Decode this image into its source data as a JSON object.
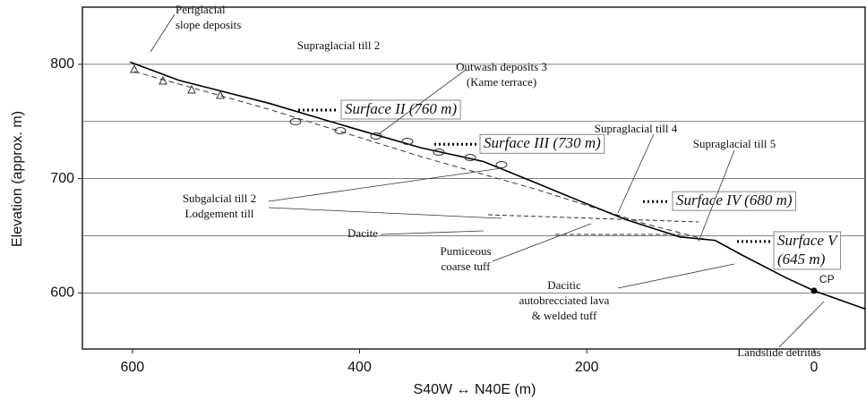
{
  "chart_data": {
    "type": "line",
    "xlabel": "S40W ↔ N40E (m)",
    "ylabel": "Elevation (approx. m)",
    "xlim": [
      644,
      -45
    ],
    "ylim": [
      551,
      850
    ],
    "xticks": [
      600,
      400,
      200,
      0
    ],
    "yticks": [
      600,
      700,
      800
    ],
    "ygrid": [
      600,
      650,
      700,
      750,
      800
    ],
    "series": [
      {
        "color": "#000000",
        "x": [
          602,
          559,
          480,
          402,
          346,
          291,
          244,
          205,
          165,
          118,
          87,
          63,
          24,
          0,
          -45
        ],
        "values": [
          802,
          786,
          766,
          743,
          727,
          715,
          696,
          680,
          664,
          649,
          646,
          633,
          613,
          602,
          586
        ]
      }
    ],
    "points": [
      {
        "label": "CP",
        "x": 0,
        "y": 602
      }
    ],
    "surfaces": [
      {
        "label": [
          "Surface II (760 m)"
        ],
        "elevation": 760
      },
      {
        "label": [
          "Surface III (730 m)"
        ],
        "elevation": 730
      },
      {
        "label": [
          "Surface IV (680 m)"
        ],
        "elevation": 680
      },
      {
        "label": [
          "Surface V",
          "(645 m)"
        ],
        "elevation": 645
      }
    ],
    "annotations": [
      [
        "Periglacial",
        "slope deposits"
      ],
      [
        "Supraglacial till 2"
      ],
      [
        "Outwash deposits 3",
        "(Kame terrace)"
      ],
      [
        "Supraglacial till 4"
      ],
      [
        "Supraglacial till 5"
      ],
      [
        "Subgalcial till 2",
        "Lodgement till"
      ],
      [
        "Dacite"
      ],
      [
        "Pumiceous",
        "coarse tuff"
      ],
      [
        "Dacitic",
        "autobrecciated lava",
        "& welded tuff"
      ],
      [
        "Landslide detritus"
      ]
    ]
  }
}
